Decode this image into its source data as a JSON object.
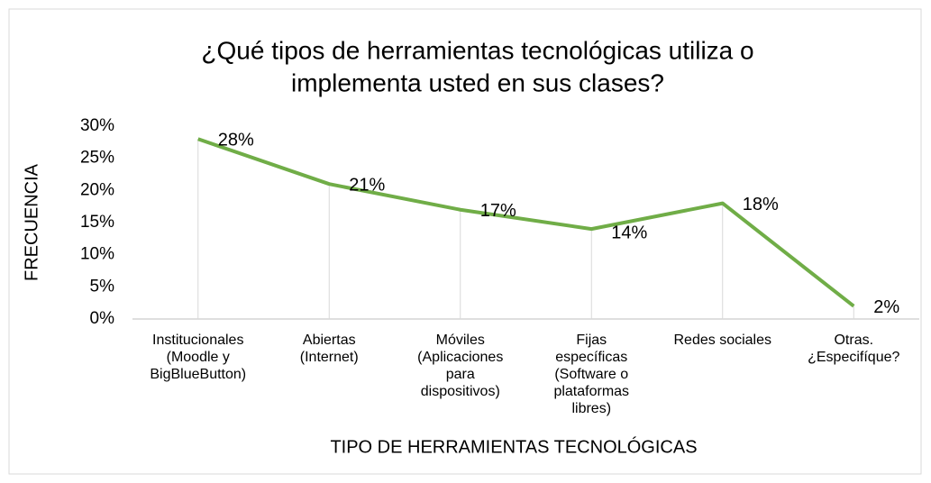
{
  "chart_data": {
    "type": "line",
    "title": [
      "¿Qué tipos de herramientas tecnológicas utiliza o",
      "implementa usted en sus clases?"
    ],
    "x_label": "TIPO DE HERRAMIENTAS TECNOLÓGICAS",
    "y_label": "FRECUENCIA",
    "categories": [
      [
        "Institucionales",
        "(Moodle y",
        "BigBlueButton)"
      ],
      [
        "Abiertas",
        "(Internet)"
      ],
      [
        "Móviles",
        "(Aplicaciones",
        "para",
        "dispositivos)"
      ],
      [
        "Fijas",
        "específicas",
        "(Software o",
        "plataformas",
        "libres)"
      ],
      [
        "Redes sociales"
      ],
      [
        "Otras.",
        "¿Especifíque?"
      ]
    ],
    "values": [
      28,
      21,
      17,
      14,
      18,
      2
    ],
    "value_labels": [
      "28%",
      "21%",
      "17%",
      "14%",
      "18%",
      "2%"
    ],
    "color": "#70ad47",
    "ylim": [
      0,
      30
    ],
    "yticks": [
      {
        "value": 0,
        "label": "0%"
      },
      {
        "value": 5,
        "label": "5%"
      },
      {
        "value": 10,
        "label": "10%"
      },
      {
        "value": 15,
        "label": "15%"
      },
      {
        "value": 20,
        "label": "20%"
      },
      {
        "value": 25,
        "label": "25%"
      },
      {
        "value": 30,
        "label": "30%"
      }
    ],
    "drop_lines": true
  }
}
